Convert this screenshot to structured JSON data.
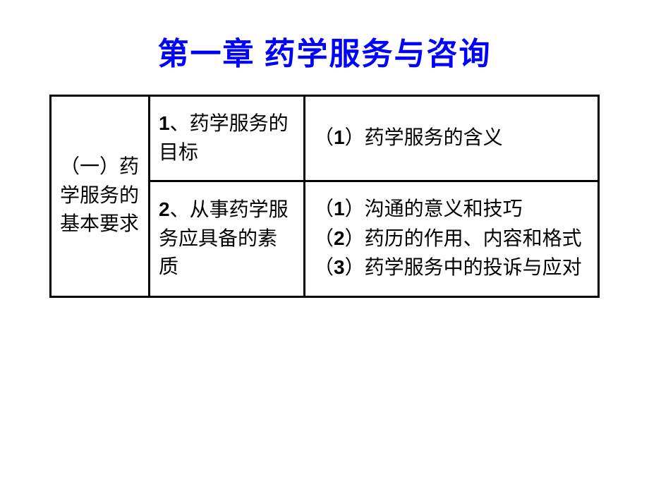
{
  "title": "第一章  药学服务与咨询",
  "table": {
    "col1": "（一）药学服务的基本要求",
    "row1": {
      "col2_num": "1",
      "col2_text": "、药学服务的目标",
      "col3_num": "1",
      "col3_prefix": "（",
      "col3_suffix": "）药学服务的含义"
    },
    "row2": {
      "col2_num": "2",
      "col2_text": "、从事药学服务应具备的素质",
      "col3": {
        "line1_num": "1",
        "line1_prefix": "（",
        "line1_suffix": "）沟通的意义和技巧",
        "line2_num": "2",
        "line2_prefix": "（",
        "line2_suffix": "）药历的作用、内容和格式",
        "line3_num": "3",
        "line3_prefix": "（",
        "line3_suffix": "）药学服务中的投诉与应对"
      }
    }
  },
  "colors": {
    "title": "#0000ff",
    "text": "#000000",
    "border": "#000000",
    "background": "#ffffff"
  },
  "typography": {
    "title_fontsize": 44,
    "cell_fontsize": 28,
    "title_weight": "bold"
  }
}
